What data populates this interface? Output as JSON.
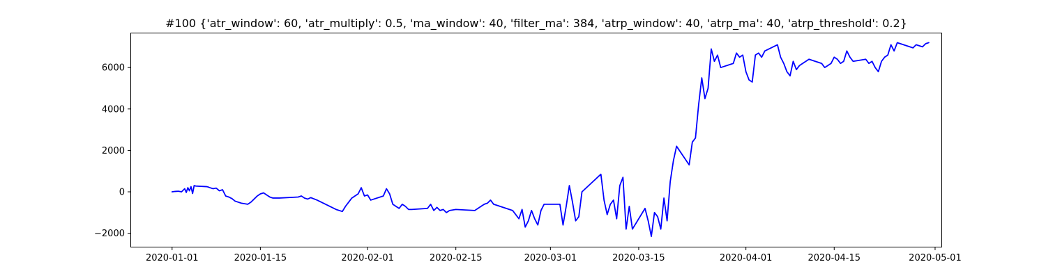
{
  "chart_data": {
    "type": "line",
    "title": "#100 {'atr_window': 60, 'atr_multiply': 0.5, 'ma_window': 40, 'filter_ma': 384, 'atrp_window': 40, 'atrp_ma': 40, 'atrp_threshold': 0.2}",
    "xlabel": "",
    "ylabel": "",
    "x_ticks": [
      "2020-01-01",
      "2020-01-15",
      "2020-02-01",
      "2020-02-15",
      "2020-03-01",
      "2020-03-15",
      "2020-04-01",
      "2020-04-15",
      "2020-05-01"
    ],
    "y_ticks": [
      -2000,
      0,
      2000,
      4000,
      6000
    ],
    "y_tick_labels": [
      "−2000",
      "0",
      "2000",
      "4000",
      "6000"
    ],
    "xlim": [
      "2019-12-25T12:00",
      "2020-05-02T00:00"
    ],
    "ylim": [
      -2650,
      7650
    ],
    "grid": false,
    "series": [
      {
        "color": "#0000ff",
        "x": [
          "2020-01-01T00:00",
          "2020-01-01T12:00",
          "2020-01-02T00:00",
          "2020-01-02T12:00",
          "2020-01-03T00:00",
          "2020-01-03T06:00",
          "2020-01-03T12:00",
          "2020-01-03T18:00",
          "2020-01-04T00:00",
          "2020-01-04T06:00",
          "2020-01-04T12:00",
          "2020-01-04T18:00",
          "2020-01-06T12:00",
          "2020-01-06T18:00",
          "2020-01-07T00:00",
          "2020-01-07T12:00",
          "2020-01-08T00:00",
          "2020-01-08T12:00",
          "2020-01-09T00:00",
          "2020-01-09T12:00",
          "2020-01-10T00:00",
          "2020-01-10T12:00",
          "2020-01-11T00:00",
          "2020-01-12T00:00",
          "2020-01-13T00:00",
          "2020-01-13T12:00",
          "2020-01-14T00:00",
          "2020-01-14T12:00",
          "2020-01-15T00:00",
          "2020-01-15T12:00",
          "2020-01-16T00:00",
          "2020-01-16T12:00",
          "2020-01-17T00:00",
          "2020-01-18T00:00",
          "2020-01-21T00:00",
          "2020-01-21T12:00",
          "2020-01-22T00:00",
          "2020-01-22T12:00",
          "2020-01-23T00:00",
          "2020-01-24T00:00",
          "2020-01-27T00:00",
          "2020-01-28T00:00",
          "2020-01-28T12:00",
          "2020-01-29T00:00",
          "2020-01-29T12:00",
          "2020-01-30T00:00",
          "2020-01-30T12:00",
          "2020-01-31T00:00",
          "2020-01-31T12:00",
          "2020-02-01T00:00",
          "2020-02-01T12:00",
          "2020-02-03T12:00",
          "2020-02-04T00:00",
          "2020-02-04T12:00",
          "2020-02-05T00:00",
          "2020-02-05T12:00",
          "2020-02-06T00:00",
          "2020-02-06T12:00",
          "2020-02-07T00:00",
          "2020-02-07T12:00",
          "2020-02-08T00:00",
          "2020-02-10T12:00",
          "2020-02-11T00:00",
          "2020-02-11T12:00",
          "2020-02-12T00:00",
          "2020-02-12T12:00",
          "2020-02-13T00:00",
          "2020-02-13T12:00",
          "2020-02-14T00:00",
          "2020-02-15T00:00",
          "2020-02-18T00:00",
          "2020-02-19T00:00",
          "2020-02-19T12:00",
          "2020-02-20T00:00",
          "2020-02-20T12:00",
          "2020-02-21T00:00",
          "2020-02-24T00:00",
          "2020-02-25T00:00",
          "2020-02-25T12:00",
          "2020-02-26T00:00",
          "2020-02-26T12:00",
          "2020-02-27T00:00",
          "2020-02-27T12:00",
          "2020-02-28T00:00",
          "2020-02-28T12:00",
          "2020-02-29T00:00",
          "2020-03-02T00:00",
          "2020-03-02T12:00",
          "2020-03-03T00:00",
          "2020-03-03T12:00",
          "2020-03-04T00:00",
          "2020-03-04T12:00",
          "2020-03-05T00:00",
          "2020-03-05T12:00",
          "2020-03-06T00:00",
          "2020-03-09T00:00",
          "2020-03-09T12:00",
          "2020-03-10T00:00",
          "2020-03-10T12:00",
          "2020-03-11T00:00",
          "2020-03-11T12:00",
          "2020-03-12T00:00",
          "2020-03-12T12:00",
          "2020-03-13T00:00",
          "2020-03-13T12:00",
          "2020-03-14T00:00",
          "2020-03-16T00:00",
          "2020-03-16T12:00",
          "2020-03-17T00:00",
          "2020-03-17T12:00",
          "2020-03-18T00:00",
          "2020-03-18T12:00",
          "2020-03-19T00:00",
          "2020-03-19T12:00",
          "2020-03-20T00:00",
          "2020-03-20T12:00",
          "2020-03-21T00:00",
          "2020-03-23T00:00",
          "2020-03-23T12:00",
          "2020-03-24T00:00",
          "2020-03-24T12:00",
          "2020-03-25T00:00",
          "2020-03-25T12:00",
          "2020-03-26T00:00",
          "2020-03-26T12:00",
          "2020-03-27T00:00",
          "2020-03-27T12:00",
          "2020-03-28T00:00",
          "2020-03-30T00:00",
          "2020-03-30T12:00",
          "2020-03-31T00:00",
          "2020-03-31T12:00",
          "2020-04-01T00:00",
          "2020-04-01T12:00",
          "2020-04-02T00:00",
          "2020-04-02T12:00",
          "2020-04-03T00:00",
          "2020-04-03T12:00",
          "2020-04-04T00:00",
          "2020-04-06T00:00",
          "2020-04-06T12:00",
          "2020-04-07T00:00",
          "2020-04-07T12:00",
          "2020-04-08T00:00",
          "2020-04-08T12:00",
          "2020-04-09T00:00",
          "2020-04-09T12:00",
          "2020-04-10T00:00",
          "2020-04-11T00:00",
          "2020-04-13T00:00",
          "2020-04-13T12:00",
          "2020-04-14T00:00",
          "2020-04-14T12:00",
          "2020-04-15T00:00",
          "2020-04-15T12:00",
          "2020-04-16T00:00",
          "2020-04-16T12:00",
          "2020-04-17T00:00",
          "2020-04-17T12:00",
          "2020-04-18T00:00",
          "2020-04-20T00:00",
          "2020-04-20T12:00",
          "2020-04-21T00:00",
          "2020-04-21T12:00",
          "2020-04-22T00:00",
          "2020-04-22T12:00",
          "2020-04-23T00:00",
          "2020-04-23T12:00",
          "2020-04-24T00:00",
          "2020-04-24T12:00",
          "2020-04-25T00:00",
          "2020-04-27T00:00",
          "2020-04-27T12:00",
          "2020-04-28T00:00",
          "2020-04-28T12:00",
          "2020-04-29T00:00",
          "2020-04-29T12:00",
          "2020-04-30T00:00"
        ],
        "y": [
          0,
          20,
          30,
          0,
          150,
          -30,
          200,
          50,
          250,
          -80,
          300,
          280,
          250,
          230,
          200,
          150,
          180,
          50,
          100,
          -200,
          -250,
          -330,
          -450,
          -550,
          -600,
          -500,
          -350,
          -200,
          -100,
          -50,
          -150,
          -250,
          -300,
          -300,
          -250,
          -200,
          -300,
          -350,
          -280,
          -400,
          -850,
          -950,
          -700,
          -500,
          -300,
          -200,
          -100,
          200,
          -200,
          -150,
          -400,
          -200,
          150,
          -100,
          -600,
          -700,
          -800,
          -600,
          -700,
          -850,
          -850,
          -800,
          -600,
          -900,
          -750,
          -900,
          -850,
          -1000,
          -900,
          -850,
          -900,
          -700,
          -600,
          -550,
          -400,
          -600,
          -900,
          -1300,
          -850,
          -1700,
          -1400,
          -900,
          -1300,
          -1600,
          -900,
          -600,
          -600,
          -600,
          -1600,
          -700,
          300,
          -500,
          -1400,
          -1200,
          0,
          850,
          -400,
          -1100,
          -600,
          -400,
          -1300,
          300,
          700,
          -1800,
          -700,
          -1800,
          -800,
          -1400,
          -2150,
          -1000,
          -1200,
          -1800,
          -300,
          -1400,
          500,
          1500,
          2200,
          1300,
          2400,
          2600,
          4200,
          5500,
          4500,
          5000,
          6900,
          6300,
          6600,
          6000,
          6200,
          6700,
          6500,
          6600,
          5800,
          5400,
          5300,
          6600,
          6700,
          6500,
          6800,
          7100,
          6500,
          6200,
          5800,
          5600,
          6300,
          5900,
          6100,
          6200,
          6400,
          6200,
          6000,
          6100,
          6200,
          6500,
          6400,
          6200,
          6300,
          6800,
          6500,
          6300,
          6400,
          6200,
          6300,
          6000,
          5800,
          6300,
          6500,
          6600,
          7100,
          6800,
          7200,
          7000,
          6950,
          7100,
          7050,
          7000,
          7150,
          7200
        ]
      }
    ]
  }
}
